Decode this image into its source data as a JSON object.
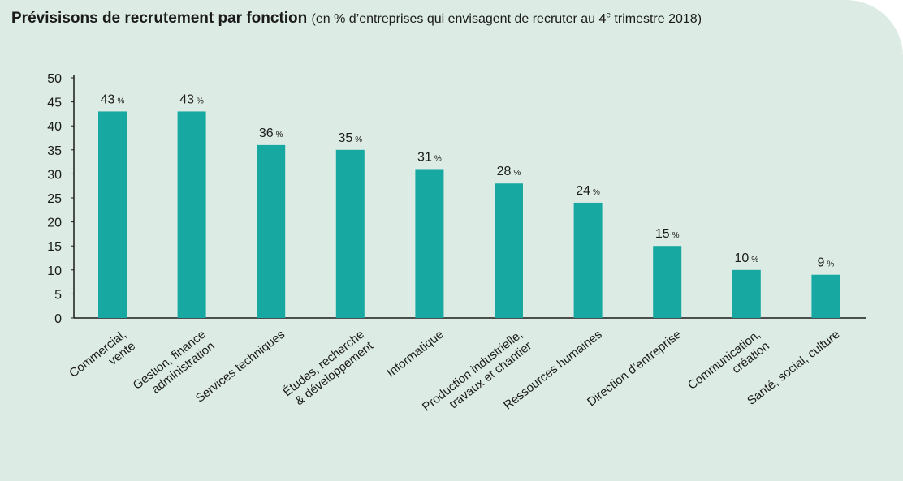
{
  "header": {
    "title": "Prévisisons de recrutement par fonction",
    "subtitle_pre": "(en % d’entreprises qui envisagent de recruter au 4",
    "subtitle_sup": "e",
    "subtitle_post": " trimestre 2018)"
  },
  "colors": {
    "background": "#dcebe4",
    "bar": "#17a9a1",
    "axis": "#1b1b1b"
  },
  "chart_data": {
    "type": "bar",
    "title": "Prévisisons de recrutement par fonction",
    "xlabel": "",
    "ylabel": "",
    "ylim": [
      0,
      50
    ],
    "yticks": [
      "0",
      "5",
      "10",
      "15",
      "20",
      "25",
      "30",
      "35",
      "40",
      "45",
      "50"
    ],
    "grid": false,
    "categories": [
      [
        "Commercial,",
        "vente"
      ],
      [
        "Gestion, finance",
        "administration"
      ],
      [
        "Services techniques"
      ],
      [
        "Études, recherche",
        "& développement"
      ],
      [
        "Informatique"
      ],
      [
        "Production industrielle,",
        "travaux et chantier"
      ],
      [
        "Ressources humaines"
      ],
      [
        "Direction d’entreprise"
      ],
      [
        "Communication,",
        "création"
      ],
      [
        "Santé, social, culture"
      ]
    ],
    "values": [
      43,
      43,
      36,
      35,
      31,
      28,
      24,
      15,
      10,
      9
    ],
    "value_labels": [
      "43",
      "43",
      "36",
      "35",
      "31",
      "28",
      "24",
      "15",
      "10",
      "9"
    ],
    "unit": "%"
  }
}
